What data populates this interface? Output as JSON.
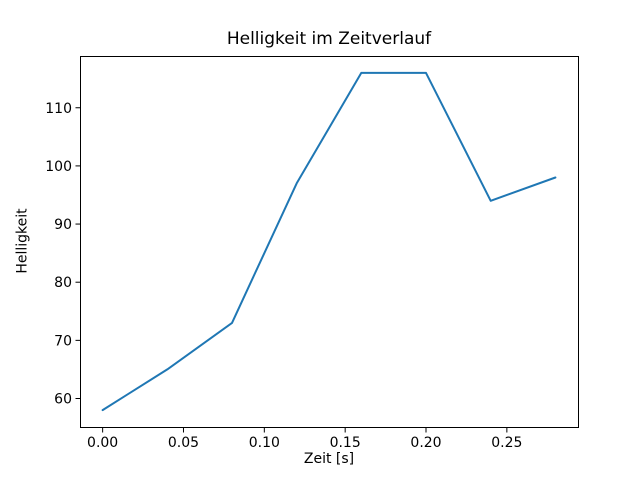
{
  "figure": {
    "title": "Helligkeit im Zeitverlauf",
    "xlabel": "Zeit [s]",
    "ylabel": "Helligkeit"
  },
  "chart_data": {
    "type": "line",
    "title": "Helligkeit im Zeitverlauf",
    "xlabel": "Zeit [s]",
    "ylabel": "Helligkeit",
    "x": [
      0.0,
      0.04,
      0.08,
      0.12,
      0.16,
      0.2,
      0.24,
      0.28
    ],
    "y": [
      58,
      65,
      73,
      97,
      116,
      116,
      94,
      98
    ],
    "xticks": [
      0.0,
      0.05,
      0.1,
      0.15,
      0.2,
      0.25
    ],
    "xtick_labels": [
      "0.00",
      "0.05",
      "0.10",
      "0.15",
      "0.20",
      "0.25"
    ],
    "yticks": [
      60,
      70,
      80,
      90,
      100,
      110
    ],
    "ytick_labels": [
      "60",
      "70",
      "80",
      "90",
      "100",
      "110"
    ],
    "xlim": [
      -0.014,
      0.294
    ],
    "ylim": [
      55.1,
      118.9
    ],
    "grid": false,
    "legend": null,
    "line_color": "#1f77b4",
    "spine_color": "#000000",
    "background_color": "#ffffff"
  }
}
